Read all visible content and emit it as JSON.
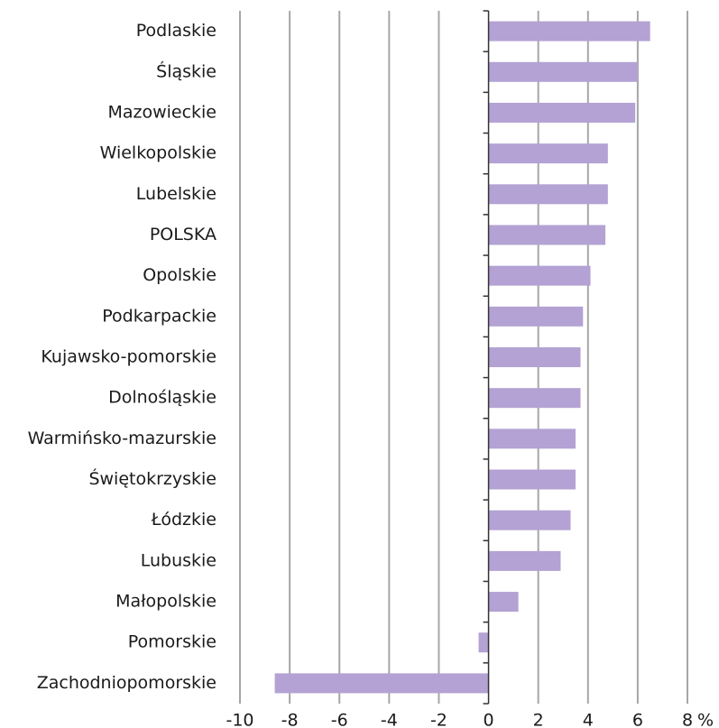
{
  "chart_data": {
    "type": "barh",
    "categories": [
      "Podlaskie",
      "Śląskie",
      "Mazowieckie",
      "Wielkopolskie",
      "Lubelskie",
      "POLSKA",
      "Opolskie",
      "Podkarpackie",
      "Kujawsko-pomorskie",
      "Dolnośląskie",
      "Warmińsko-mazurskie",
      "Świętokrzyskie",
      "Łódzkie",
      "Lubuskie",
      "Małopolskie",
      "Pomorskie",
      "Zachodniopomorskie"
    ],
    "values": [
      6.5,
      6.0,
      5.9,
      4.8,
      4.8,
      4.7,
      4.1,
      3.8,
      3.7,
      3.7,
      3.5,
      3.5,
      3.3,
      2.9,
      1.2,
      -0.4,
      -8.6
    ],
    "color": "#b3a2d3",
    "xlim": [
      -10,
      8
    ],
    "xticks": [
      -10,
      -8,
      -6,
      -4,
      -2,
      0,
      2,
      4,
      6,
      8
    ],
    "xlabel": "%",
    "grid": true
  }
}
